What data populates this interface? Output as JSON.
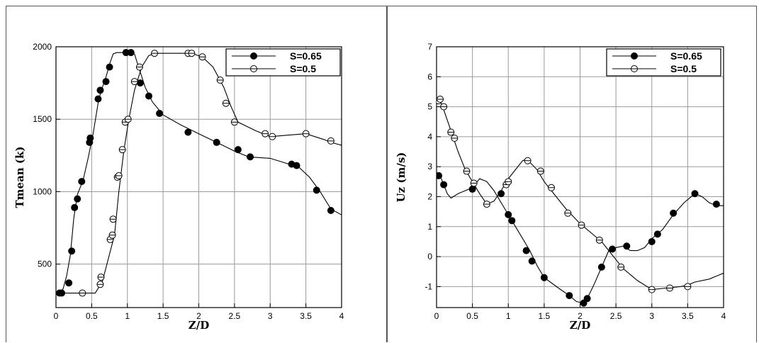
{
  "chart_data": [
    {
      "type": "line",
      "xlabel": "Z/D",
      "ylabel": "Tmean (k)",
      "xlim": [
        0,
        4
      ],
      "ylim": [
        200,
        2000
      ],
      "xticks": [
        0,
        0.5,
        1,
        1.5,
        2,
        2.5,
        3,
        3.5,
        4
      ],
      "xtick_labels": [
        "0",
        "0.5",
        "1",
        "1.5",
        "2",
        "2.5",
        "3",
        "3.5",
        "4"
      ],
      "yticks": [
        500,
        1000,
        1500,
        2000
      ],
      "ytick_labels": [
        "500",
        "1000",
        "1500",
        "2000"
      ],
      "grid": true,
      "legend": "top-right",
      "series": [
        {
          "name": "S=0.65",
          "marker": "filled-circle",
          "line": [
            [
              0.02,
              280
            ],
            [
              0.05,
              300
            ],
            [
              0.1,
              330
            ],
            [
              0.15,
              420
            ],
            [
              0.2,
              560
            ],
            [
              0.25,
              820
            ],
            [
              0.3,
              980
            ],
            [
              0.38,
              1080
            ],
            [
              0.45,
              1230
            ],
            [
              0.52,
              1400
            ],
            [
              0.6,
              1640
            ],
            [
              0.65,
              1720
            ],
            [
              0.7,
              1790
            ],
            [
              0.75,
              1880
            ],
            [
              0.8,
              1950
            ],
            [
              0.85,
              1960
            ],
            [
              1.0,
              1960
            ],
            [
              1.1,
              1950
            ],
            [
              1.15,
              1870
            ],
            [
              1.25,
              1720
            ],
            [
              1.35,
              1620
            ],
            [
              1.5,
              1530
            ],
            [
              1.75,
              1460
            ],
            [
              2.0,
              1400
            ],
            [
              2.25,
              1340
            ],
            [
              2.5,
              1280
            ],
            [
              2.7,
              1240
            ],
            [
              3.0,
              1230
            ],
            [
              3.2,
              1200
            ],
            [
              3.4,
              1170
            ],
            [
              3.55,
              1100
            ],
            [
              3.7,
              1000
            ],
            [
              3.85,
              880
            ],
            [
              4.0,
              840
            ]
          ],
          "points": [
            [
              0.05,
              300
            ],
            [
              0.08,
              300
            ],
            [
              0.18,
              370
            ],
            [
              0.22,
              590
            ],
            [
              0.26,
              890
            ],
            [
              0.3,
              950
            ],
            [
              0.36,
              1070
            ],
            [
              0.47,
              1340
            ],
            [
              0.48,
              1370
            ],
            [
              0.59,
              1640
            ],
            [
              0.62,
              1700
            ],
            [
              0.7,
              1760
            ],
            [
              0.75,
              1860
            ],
            [
              0.98,
              1960
            ],
            [
              1.05,
              1960
            ],
            [
              1.18,
              1750
            ],
            [
              1.3,
              1660
            ],
            [
              1.45,
              1540
            ],
            [
              1.85,
              1410
            ],
            [
              2.25,
              1340
            ],
            [
              2.55,
              1290
            ],
            [
              2.72,
              1240
            ],
            [
              3.3,
              1190
            ],
            [
              3.37,
              1180
            ],
            [
              3.65,
              1010
            ],
            [
              3.85,
              870
            ]
          ]
        },
        {
          "name": "S=0.5",
          "marker": "open-circle",
          "line": [
            [
              0.1,
              300
            ],
            [
              0.55,
              300
            ],
            [
              0.65,
              380
            ],
            [
              0.75,
              570
            ],
            [
              0.82,
              700
            ],
            [
              0.88,
              1000
            ],
            [
              0.95,
              1280
            ],
            [
              1.02,
              1500
            ],
            [
              1.1,
              1700
            ],
            [
              1.2,
              1860
            ],
            [
              1.3,
              1940
            ],
            [
              1.4,
              1955
            ],
            [
              1.9,
              1955
            ],
            [
              2.05,
              1930
            ],
            [
              2.2,
              1860
            ],
            [
              2.35,
              1720
            ],
            [
              2.45,
              1590
            ],
            [
              2.55,
              1480
            ],
            [
              2.8,
              1420
            ],
            [
              3.0,
              1380
            ],
            [
              3.25,
              1390
            ],
            [
              3.5,
              1400
            ],
            [
              3.75,
              1360
            ],
            [
              3.85,
              1340
            ],
            [
              4.0,
              1320
            ]
          ],
          "points": [
            [
              0.37,
              300
            ],
            [
              0.62,
              360
            ],
            [
              0.63,
              410
            ],
            [
              0.76,
              670
            ],
            [
              0.79,
              700
            ],
            [
              0.8,
              810
            ],
            [
              0.86,
              1100
            ],
            [
              0.88,
              1110
            ],
            [
              0.93,
              1290
            ],
            [
              0.97,
              1480
            ],
            [
              1.01,
              1500
            ],
            [
              1.1,
              1760
            ],
            [
              1.17,
              1860
            ],
            [
              1.38,
              1955
            ],
            [
              1.85,
              1955
            ],
            [
              1.9,
              1955
            ],
            [
              2.05,
              1930
            ],
            [
              2.3,
              1770
            ],
            [
              2.38,
              1610
            ],
            [
              2.5,
              1480
            ],
            [
              2.93,
              1400
            ],
            [
              3.03,
              1380
            ],
            [
              3.5,
              1400
            ],
            [
              3.85,
              1350
            ]
          ]
        }
      ]
    },
    {
      "type": "line",
      "xlabel": "Z/D",
      "ylabel": "Uz (m/s)",
      "xlim": [
        0,
        4
      ],
      "ylim": [
        -1.7,
        7
      ],
      "xticks": [
        0,
        0.5,
        1,
        1.5,
        2,
        2.5,
        3,
        3.5,
        4
      ],
      "xtick_labels": [
        "0",
        "0.5",
        "1",
        "1.5",
        "2",
        "2.5",
        "3",
        "3.5",
        "4"
      ],
      "yticks": [
        -1,
        0,
        1,
        2,
        3,
        4,
        5,
        6,
        7
      ],
      "ytick_labels": [
        "-1",
        "0",
        "1",
        "2",
        "3",
        "4",
        "5",
        "6",
        "7"
      ],
      "grid": true,
      "legend": "top-right",
      "series": [
        {
          "name": "S=0.65",
          "marker": "filled-circle",
          "line": [
            [
              0.0,
              2.7
            ],
            [
              0.05,
              2.7
            ],
            [
              0.1,
              2.4
            ],
            [
              0.15,
              2.1
            ],
            [
              0.2,
              1.95
            ],
            [
              0.3,
              2.1
            ],
            [
              0.4,
              2.2
            ],
            [
              0.5,
              2.3
            ],
            [
              0.6,
              2.6
            ],
            [
              0.7,
              2.5
            ],
            [
              0.8,
              2.2
            ],
            [
              0.9,
              1.8
            ],
            [
              1.0,
              1.4
            ],
            [
              1.1,
              1.0
            ],
            [
              1.2,
              0.6
            ],
            [
              1.3,
              0.2
            ],
            [
              1.4,
              -0.3
            ],
            [
              1.5,
              -0.7
            ],
            [
              1.7,
              -1.05
            ],
            [
              1.85,
              -1.3
            ],
            [
              1.95,
              -1.5
            ],
            [
              2.05,
              -1.55
            ],
            [
              2.1,
              -1.4
            ],
            [
              2.2,
              -0.9
            ],
            [
              2.3,
              -0.35
            ],
            [
              2.4,
              0.2
            ],
            [
              2.5,
              0.3
            ],
            [
              2.6,
              0.35
            ],
            [
              2.7,
              0.2
            ],
            [
              2.8,
              0.2
            ],
            [
              2.9,
              0.3
            ],
            [
              3.0,
              0.6
            ],
            [
              3.15,
              0.9
            ],
            [
              3.3,
              1.4
            ],
            [
              3.45,
              1.8
            ],
            [
              3.6,
              2.1
            ],
            [
              3.7,
              2.0
            ],
            [
              3.8,
              1.8
            ],
            [
              3.9,
              1.7
            ],
            [
              4.0,
              1.7
            ]
          ],
          "points": [
            [
              0.03,
              2.7
            ],
            [
              0.1,
              2.4
            ],
            [
              0.5,
              2.25
            ],
            [
              0.9,
              2.1
            ],
            [
              1.0,
              1.4
            ],
            [
              1.05,
              1.2
            ],
            [
              1.25,
              0.2
            ],
            [
              1.33,
              -0.15
            ],
            [
              1.5,
              -0.7
            ],
            [
              1.85,
              -1.3
            ],
            [
              2.05,
              -1.55
            ],
            [
              2.1,
              -1.4
            ],
            [
              2.3,
              -0.35
            ],
            [
              2.45,
              0.25
            ],
            [
              2.65,
              0.35
            ],
            [
              3.0,
              0.5
            ],
            [
              3.08,
              0.75
            ],
            [
              3.3,
              1.45
            ],
            [
              3.6,
              2.1
            ],
            [
              3.9,
              1.75
            ]
          ]
        },
        {
          "name": "S=0.5",
          "marker": "open-circle",
          "line": [
            [
              0.0,
              5.3
            ],
            [
              0.05,
              5.2
            ],
            [
              0.1,
              4.9
            ],
            [
              0.2,
              4.2
            ],
            [
              0.3,
              3.5
            ],
            [
              0.4,
              2.9
            ],
            [
              0.5,
              2.5
            ],
            [
              0.6,
              2.1
            ],
            [
              0.7,
              1.75
            ],
            [
              0.8,
              1.85
            ],
            [
              0.9,
              2.2
            ],
            [
              1.0,
              2.6
            ],
            [
              1.1,
              2.9
            ],
            [
              1.2,
              3.2
            ],
            [
              1.25,
              3.25
            ],
            [
              1.3,
              3.15
            ],
            [
              1.4,
              2.9
            ],
            [
              1.5,
              2.5
            ],
            [
              1.6,
              2.2
            ],
            [
              1.8,
              1.6
            ],
            [
              2.0,
              1.1
            ],
            [
              2.2,
              0.7
            ],
            [
              2.3,
              0.5
            ],
            [
              2.4,
              0.2
            ],
            [
              2.5,
              -0.1
            ],
            [
              2.6,
              -0.4
            ],
            [
              2.8,
              -0.8
            ],
            [
              3.0,
              -1.1
            ],
            [
              3.2,
              -1.05
            ],
            [
              3.4,
              -1.0
            ],
            [
              3.5,
              -0.95
            ],
            [
              3.6,
              -0.85
            ],
            [
              3.8,
              -0.75
            ],
            [
              4.0,
              -0.55
            ]
          ],
          "points": [
            [
              0.03,
              5.2
            ],
            [
              0.05,
              5.25
            ],
            [
              0.1,
              5.0
            ],
            [
              0.2,
              4.15
            ],
            [
              0.25,
              3.95
            ],
            [
              0.42,
              2.85
            ],
            [
              0.52,
              2.45
            ],
            [
              0.7,
              1.75
            ],
            [
              0.97,
              2.4
            ],
            [
              1.0,
              2.5
            ],
            [
              1.27,
              3.2
            ],
            [
              1.45,
              2.85
            ],
            [
              1.6,
              2.3
            ],
            [
              1.83,
              1.45
            ],
            [
              2.02,
              1.05
            ],
            [
              2.27,
              0.55
            ],
            [
              2.57,
              -0.35
            ],
            [
              3.0,
              -1.1
            ],
            [
              3.25,
              -1.05
            ],
            [
              3.5,
              -1.0
            ]
          ]
        }
      ]
    }
  ]
}
